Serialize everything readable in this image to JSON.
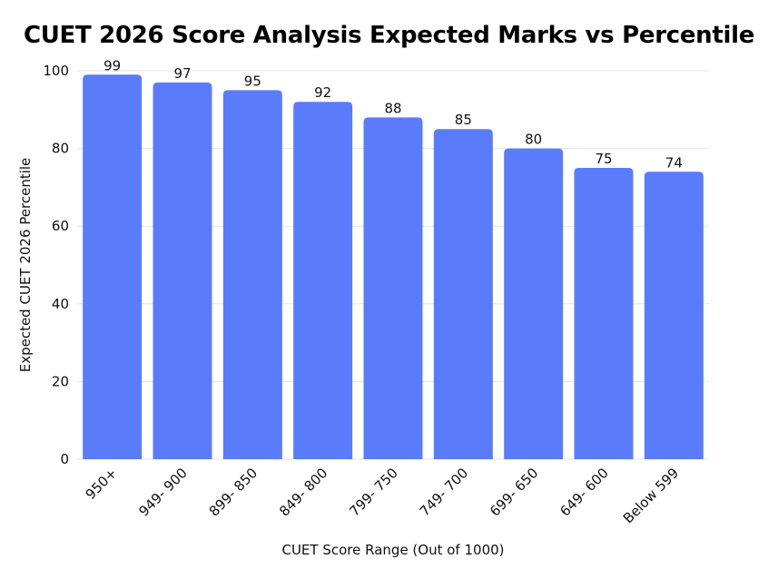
{
  "chart_data": {
    "type": "bar",
    "title": "CUET 2026 Score Analysis Expected Marks vs Percentile",
    "xlabel": "CUET Score Range (Out of 1000)",
    "ylabel": "Expected CUET 2026 Percentile",
    "categories": [
      "950+",
      "949- 900",
      "899- 850",
      "849- 800",
      "799- 750",
      "749- 700",
      "699- 650",
      "649- 600",
      "Below 599"
    ],
    "values": [
      99,
      97,
      95,
      92,
      88,
      85,
      80,
      75,
      74
    ],
    "ylim": [
      0,
      100
    ],
    "yticks": [
      0,
      20,
      40,
      60,
      80,
      100
    ],
    "grid": true,
    "legend": "none",
    "colors": {
      "bar": "#5b7cfa",
      "grid": "#e6e6e6",
      "text": "#111111"
    }
  }
}
